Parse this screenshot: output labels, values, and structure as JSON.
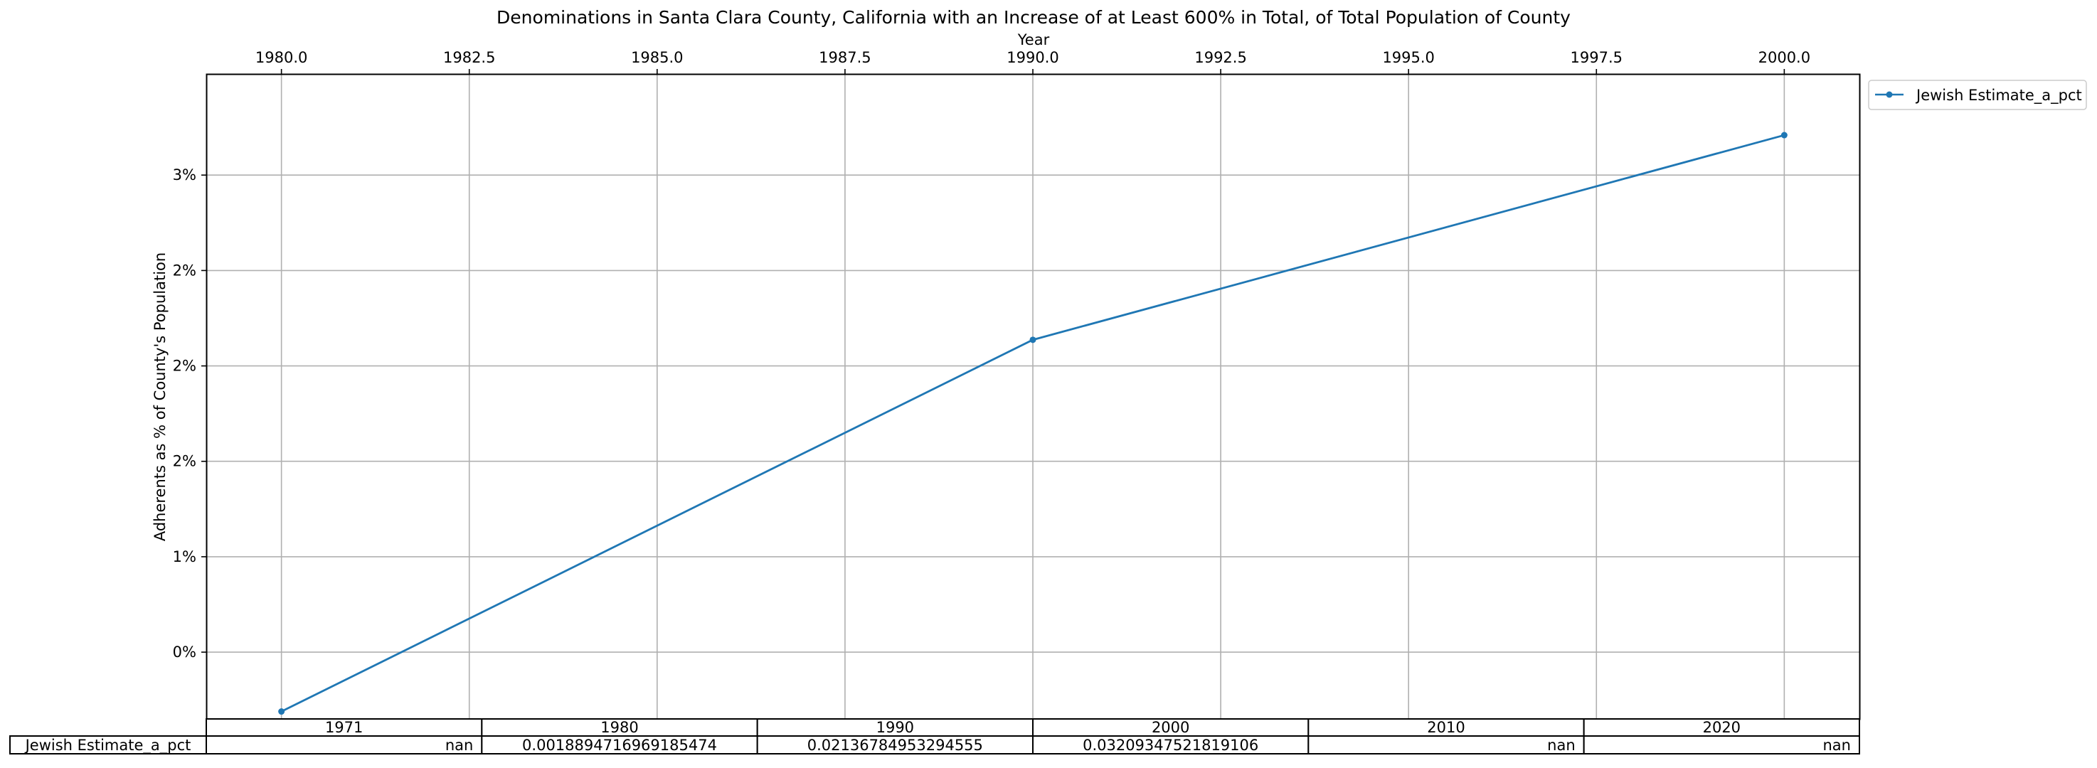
{
  "chart_data": {
    "type": "line",
    "title": "Denominations in Santa Clara County, California with an Increase of at Least 600% in Total, of Total Population of County",
    "xlabel": "Year",
    "ylabel": "Adherents as % of County's Population",
    "x_axis_position": "top",
    "xlim": [
      1979.0,
      2001.0
    ],
    "ylim": [
      0.0015,
      0.0353
    ],
    "x_ticks": [
      1980.0,
      1982.5,
      1985.0,
      1987.5,
      1990.0,
      1992.5,
      1995.0,
      1997.5,
      2000.0
    ],
    "x_tick_labels": [
      "1980.0",
      "1982.5",
      "1985.0",
      "1987.5",
      "1990.0",
      "1992.5",
      "1995.0",
      "1997.5",
      "2000.0"
    ],
    "y_ticks": [
      0.005,
      0.01,
      0.015,
      0.02,
      0.025,
      0.03
    ],
    "y_tick_labels": [
      "0%",
      "1%",
      "2%",
      "2%",
      "2%",
      "3%"
    ],
    "grid": true,
    "legend_position": "outside-top-right",
    "series": [
      {
        "name": "Jewish Estimate_a_pct",
        "color": "#1f77b4",
        "marker": "dot",
        "x": [
          1980,
          1990,
          2000
        ],
        "values": [
          0.0018894716969185474,
          0.02136784953294555,
          0.03209347521819106
        ]
      }
    ],
    "table": {
      "columns": [
        "1971",
        "1980",
        "1990",
        "2000",
        "2010",
        "2020"
      ],
      "rows": [
        {
          "label": "Jewish Estimate_a_pct",
          "cells": [
            "nan",
            "0.0018894716969185474",
            "0.02136784953294555",
            "0.03209347521819106",
            "nan",
            "nan"
          ]
        }
      ]
    }
  }
}
